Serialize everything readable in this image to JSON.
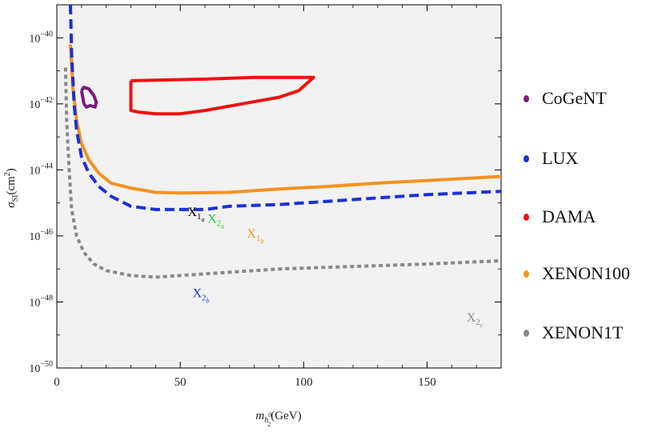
{
  "chart_data": {
    "type": "line",
    "title": "",
    "xlabel": "m_{h_2^0}(GeV)",
    "ylabel": "σ_SI(cm²)",
    "xlim": [
      0,
      180
    ],
    "ylim_log10": [
      -50,
      -39
    ],
    "y_scale": "log",
    "grid": false,
    "legend_position": "right",
    "x_ticks": [
      0,
      50,
      100,
      150
    ],
    "x_tick_labels": [
      "0",
      "50",
      "100",
      "150"
    ],
    "y_ticks_log10": [
      -40,
      -42,
      -44,
      -46,
      -48,
      -50
    ],
    "series": [
      {
        "name": "CoGeNT",
        "color": "#7b1a7b",
        "style": "closed-contour",
        "points": [
          [
            10.0,
            -41.6
          ],
          [
            11.0,
            -41.5
          ],
          [
            13.0,
            -41.55
          ],
          [
            15.0,
            -41.75
          ],
          [
            16.0,
            -41.95
          ],
          [
            15.5,
            -42.1
          ],
          [
            13.5,
            -42.05
          ],
          [
            12.0,
            -42.1
          ],
          [
            11.0,
            -42.0
          ],
          [
            10.5,
            -41.8
          ],
          [
            10.0,
            -41.6
          ]
        ]
      },
      {
        "name": "LUX",
        "color": "#1f2fd6",
        "style": "dashed",
        "points": [
          [
            5.5,
            -39.0
          ],
          [
            6.0,
            -40.5
          ],
          [
            7.0,
            -42.0
          ],
          [
            8.0,
            -42.8
          ],
          [
            10.0,
            -43.6
          ],
          [
            13.0,
            -44.1
          ],
          [
            17.0,
            -44.5
          ],
          [
            22.0,
            -44.8
          ],
          [
            30.0,
            -45.1
          ],
          [
            40.0,
            -45.2
          ],
          [
            50.0,
            -45.2
          ],
          [
            60.0,
            -45.2
          ],
          [
            70.0,
            -45.1
          ],
          [
            90.0,
            -45.05
          ],
          [
            110.0,
            -44.95
          ],
          [
            130.0,
            -44.85
          ],
          [
            150.0,
            -44.75
          ],
          [
            180.0,
            -44.65
          ]
        ]
      },
      {
        "name": "DAMA",
        "color": "#ee1111",
        "style": "closed-contour",
        "points": [
          [
            30.0,
            -41.3
          ],
          [
            60.0,
            -41.25
          ],
          [
            80.0,
            -41.2
          ],
          [
            104.0,
            -41.2
          ],
          [
            101.0,
            -41.4
          ],
          [
            98.0,
            -41.6
          ],
          [
            90.0,
            -41.8
          ],
          [
            75.0,
            -42.0
          ],
          [
            60.0,
            -42.2
          ],
          [
            50.0,
            -42.3
          ],
          [
            40.0,
            -42.3
          ],
          [
            33.0,
            -42.25
          ],
          [
            30.0,
            -42.2
          ],
          [
            30.0,
            -41.3
          ]
        ]
      },
      {
        "name": "XENON100",
        "color": "#f5921e",
        "style": "solid",
        "points": [
          [
            5.5,
            -40.2
          ],
          [
            6.5,
            -41.5
          ],
          [
            8.0,
            -42.5
          ],
          [
            10.0,
            -43.2
          ],
          [
            13.0,
            -43.7
          ],
          [
            17.0,
            -44.1
          ],
          [
            22.0,
            -44.4
          ],
          [
            30.0,
            -44.55
          ],
          [
            40.0,
            -44.68
          ],
          [
            50.0,
            -44.7
          ],
          [
            70.0,
            -44.68
          ],
          [
            90.0,
            -44.58
          ],
          [
            110.0,
            -44.5
          ],
          [
            130.0,
            -44.4
          ],
          [
            150.0,
            -44.32
          ],
          [
            180.0,
            -44.2
          ]
        ]
      },
      {
        "name": "XENON1T",
        "color": "#888888",
        "style": "dotted",
        "points": [
          [
            3.5,
            -40.9
          ],
          [
            4.0,
            -42.5
          ],
          [
            5.0,
            -44.0
          ],
          [
            6.0,
            -45.2
          ],
          [
            8.0,
            -46.0
          ],
          [
            11.0,
            -46.5
          ],
          [
            15.0,
            -46.85
          ],
          [
            20.0,
            -47.05
          ],
          [
            30.0,
            -47.2
          ],
          [
            40.0,
            -47.25
          ],
          [
            50.0,
            -47.2
          ],
          [
            70.0,
            -47.1
          ],
          [
            90.0,
            -47.0
          ],
          [
            110.0,
            -46.95
          ],
          [
            130.0,
            -46.9
          ],
          [
            150.0,
            -46.85
          ],
          [
            180.0,
            -46.75
          ]
        ]
      }
    ],
    "annotations": [
      {
        "base": "X",
        "sub": "1",
        "subsub": "a",
        "x": 53,
        "y": -45.4,
        "color": "#000000"
      },
      {
        "base": "X",
        "sub": "2",
        "subsub": "a",
        "x": 61,
        "y": -45.6,
        "color": "#22cc22"
      },
      {
        "base": "X",
        "sub": "1",
        "subsub": "b",
        "x": 77,
        "y": -46.05,
        "color": "#f5921e"
      },
      {
        "base": "X",
        "sub": "2",
        "subsub": "b",
        "x": 55,
        "y": -47.85,
        "color": "#1f2fd6"
      },
      {
        "base": "X",
        "sub": "2",
        "subsub": "c",
        "x": 166,
        "y": -48.6,
        "color": "#888888"
      }
    ]
  },
  "legend": {
    "items": [
      {
        "label": "CoGeNT",
        "color": "#7b1a7b"
      },
      {
        "label": "LUX",
        "color": "#1f2fd6"
      },
      {
        "label": "DAMA",
        "color": "#ee1111"
      },
      {
        "label": "XENON100",
        "color": "#f5921e"
      },
      {
        "label": "XENON1T",
        "color": "#888888"
      }
    ]
  }
}
